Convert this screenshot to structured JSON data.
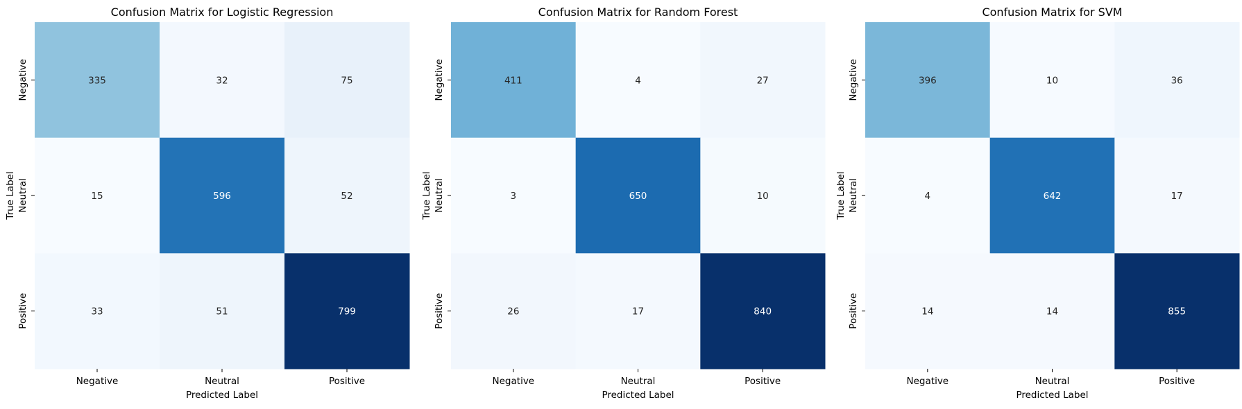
{
  "chart_data": [
    {
      "type": "heatmap",
      "title": "Confusion Matrix for Logistic Regression",
      "xlabel": "Predicted Label",
      "ylabel": "True Label",
      "x_categories": [
        "Negative",
        "Neutral",
        "Positive"
      ],
      "y_categories": [
        "Negative",
        "Neutral",
        "Positive"
      ],
      "values": [
        [
          335,
          32,
          75
        ],
        [
          15,
          596,
          52
        ],
        [
          33,
          51,
          799
        ]
      ],
      "colormap": "Blues",
      "colorbar": false
    },
    {
      "type": "heatmap",
      "title": "Confusion Matrix for Random Forest",
      "xlabel": "Predicted Label",
      "ylabel": "True Label",
      "x_categories": [
        "Negative",
        "Neutral",
        "Positive"
      ],
      "y_categories": [
        "Negative",
        "Neutral",
        "Positive"
      ],
      "values": [
        [
          411,
          4,
          27
        ],
        [
          3,
          650,
          10
        ],
        [
          26,
          17,
          840
        ]
      ],
      "colormap": "Blues",
      "colorbar": false
    },
    {
      "type": "heatmap",
      "title": "Confusion Matrix for SVM",
      "xlabel": "Predicted Label",
      "ylabel": "True Label",
      "x_categories": [
        "Negative",
        "Neutral",
        "Positive"
      ],
      "y_categories": [
        "Negative",
        "Neutral",
        "Positive"
      ],
      "values": [
        [
          396,
          10,
          36
        ],
        [
          4,
          642,
          17
        ],
        [
          14,
          14,
          855
        ]
      ],
      "colormap": "Blues",
      "colorbar": false
    }
  ],
  "colors": {
    "blues_ramp": [
      "#f7fbff",
      "#deebf7",
      "#c6dbef",
      "#9ecae1",
      "#6baed6",
      "#4292c6",
      "#2171b5",
      "#08519c",
      "#08306b"
    ],
    "text_dark": "#262626",
    "text_light": "#ffffff"
  }
}
